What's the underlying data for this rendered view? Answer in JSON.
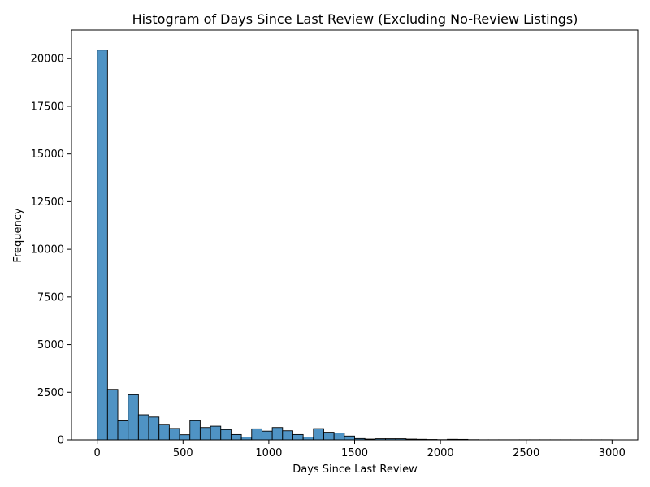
{
  "chart_data": {
    "type": "bar",
    "title": "Histogram of Days Since Last Review (Excluding No-Review Listings)",
    "xlabel": "Days Since Last Review",
    "ylabel": "Frequency",
    "xlim": [
      -150,
      3150
    ],
    "ylim": [
      0,
      21500
    ],
    "xticks": [
      0,
      500,
      1000,
      1500,
      2000,
      2500,
      3000
    ],
    "yticks": [
      0,
      2500,
      5000,
      7500,
      10000,
      12500,
      15000,
      17500,
      20000
    ],
    "bar_color": "#4f93c4",
    "edge_color": "#000000",
    "grid": false,
    "bin_width": 60,
    "bins_start": 0,
    "values": [
      20450,
      2650,
      1000,
      2370,
      1320,
      1200,
      820,
      600,
      270,
      1010,
      650,
      720,
      540,
      280,
      150,
      580,
      460,
      650,
      480,
      280,
      150,
      590,
      400,
      360,
      200,
      70,
      40,
      60,
      60,
      60,
      40,
      30,
      20,
      10,
      30,
      25,
      10,
      5,
      5,
      5,
      5,
      5,
      5,
      5,
      5,
      5,
      5,
      5,
      5,
      5
    ]
  }
}
